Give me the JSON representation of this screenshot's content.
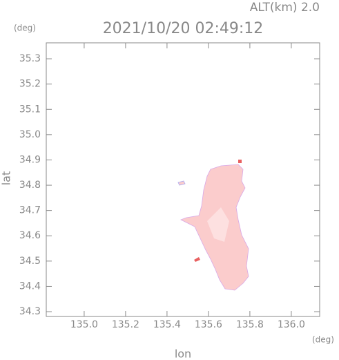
{
  "chart_data": {
    "type": "map",
    "title": "2021/10/20 02:49:12",
    "subtitle": "ALT(km) 2.0",
    "xlabel": "lon",
    "ylabel": "lat",
    "xunit": "(deg)",
    "yunit": "(deg)",
    "xlim": [
      134.817,
      136.137
    ],
    "ylim": [
      34.281,
      35.363
    ],
    "xticks": [
      {
        "value": 135,
        "label": "135.0"
      },
      135.2,
      135.4,
      135.6,
      135.8,
      {
        "value": 136,
        "label": "136.0"
      }
    ],
    "yticks": [
      34.3,
      34.4,
      34.5,
      34.6,
      34.7,
      34.8,
      34.9,
      {
        "value": 35,
        "label": "35.0"
      },
      35.1,
      35.2,
      35.3
    ]
  }
}
